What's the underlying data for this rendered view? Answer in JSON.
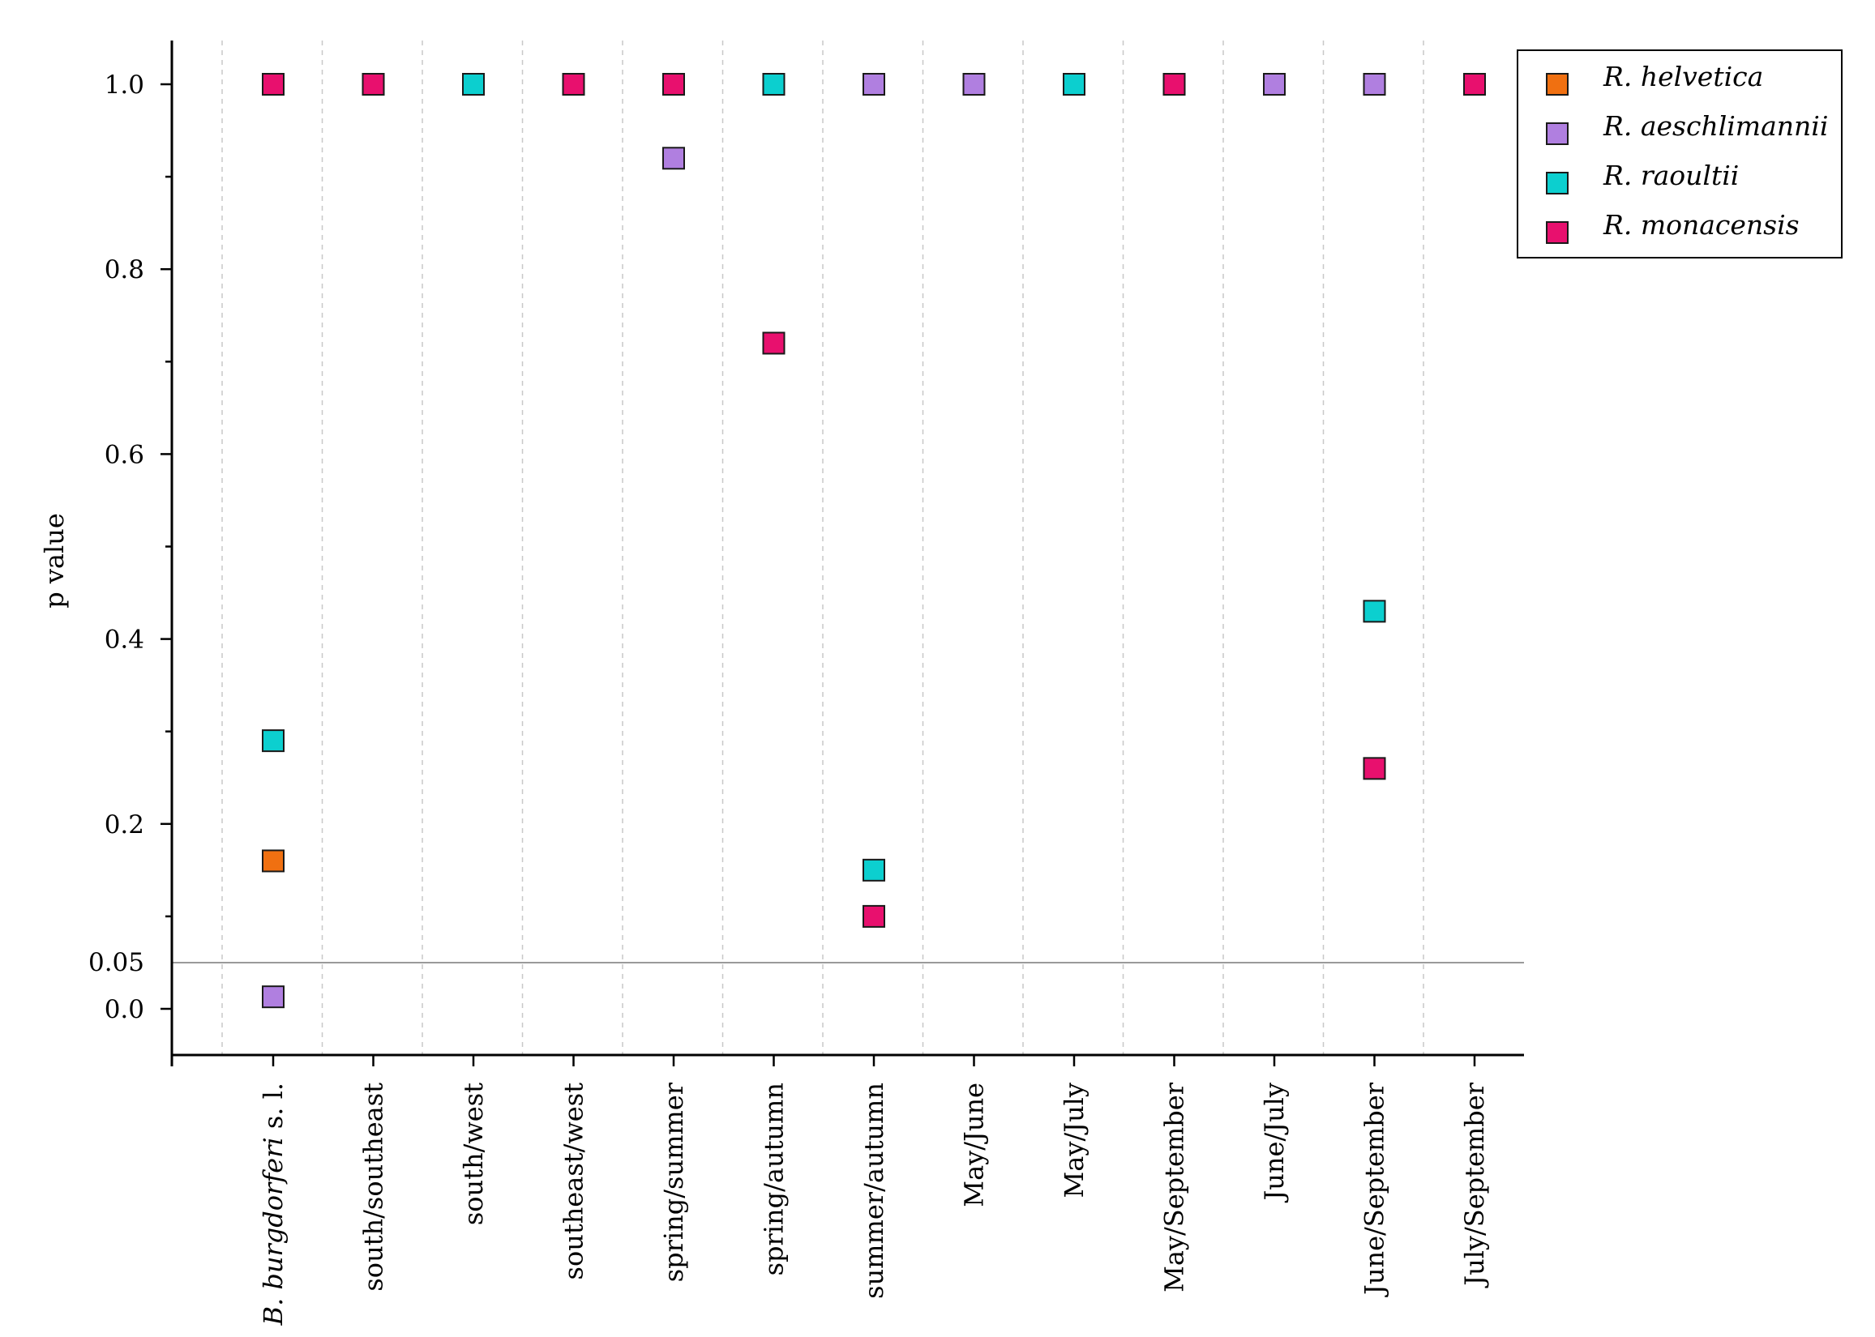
{
  "chart_data": {
    "type": "scatter",
    "ylabel": "p value",
    "xlabel": "",
    "ylim": [
      -0.05,
      1.05
    ],
    "yticks": [
      0.0,
      0.2,
      0.4,
      0.6,
      0.8,
      1.0
    ],
    "ytick_labels": [
      "0.0",
      "0.2",
      "0.4",
      "0.6",
      "0.8",
      "1.0"
    ],
    "reference_line": {
      "value": 0.05,
      "label": "0.05"
    },
    "categories": [
      {
        "label": "B. burgdorferi",
        "suffix": " s. l."
      },
      {
        "label": "south/southeast"
      },
      {
        "label": "south/west"
      },
      {
        "label": "southeast/west"
      },
      {
        "label": "spring/summer"
      },
      {
        "label": "spring/autumn"
      },
      {
        "label": "summer/autumn"
      },
      {
        "label": "May/June"
      },
      {
        "label": "May/July"
      },
      {
        "label": "May/September"
      },
      {
        "label": "June/July"
      },
      {
        "label": "June/September"
      },
      {
        "label": "July/September"
      }
    ],
    "legend_position": "top-right",
    "series": [
      {
        "name": "R. helvetica",
        "color": "#f07011",
        "values": [
          0.16,
          null,
          null,
          null,
          null,
          null,
          null,
          null,
          null,
          null,
          null,
          null,
          null
        ]
      },
      {
        "name": "R. aeschlimannii",
        "color": "#b07fe0",
        "values": [
          0.013,
          null,
          null,
          null,
          0.92,
          null,
          1.0,
          1.0,
          null,
          null,
          1.0,
          1.0,
          null
        ]
      },
      {
        "name": "R. raoultii",
        "color": "#0ccfcf",
        "values": [
          0.29,
          null,
          1.0,
          null,
          null,
          1.0,
          0.15,
          null,
          1.0,
          null,
          null,
          0.43,
          null
        ]
      },
      {
        "name": "R. monacensis",
        "color": "#e8106e",
        "values": [
          1.0,
          1.0,
          null,
          1.0,
          1.0,
          0.72,
          0.1,
          null,
          null,
          1.0,
          null,
          0.26,
          1.0
        ]
      }
    ]
  }
}
